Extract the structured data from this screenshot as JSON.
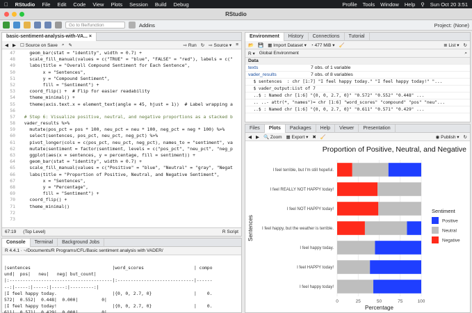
{
  "menubar": {
    "app": "RStudio",
    "items": [
      "File",
      "Edit",
      "Code",
      "View",
      "Plots",
      "Session",
      "Build",
      "Debug"
    ],
    "right_items": [
      "Profile",
      "Tools",
      "Window",
      "Help"
    ],
    "clock": "Sun Oct 20  3:51"
  },
  "window_title": "RStudio",
  "toolbar": {
    "goto_placeholder": "Go to file/function",
    "addins": "Addins",
    "project": "Project: (None)"
  },
  "editor": {
    "tab": "basic-sentiment-analysis-with-VA...",
    "source_on_save": "Source on Save",
    "run": "Run",
    "source": "Source",
    "lines": [
      {
        "n": "47",
        "t": "    geom_bar(stat = \"identity\", width = 0.7) +"
      },
      {
        "n": "48",
        "t": "    scale_fill_manual(values = c(\"TRUE\" = \"blue\", \"FALSE\" = \"red\"), labels = c(\""
      },
      {
        "n": "49",
        "t": "    labs(title = \"Overall Compound Sentiment for Each Sentence\","
      },
      {
        "n": "50",
        "t": "         x = \"Sentences\","
      },
      {
        "n": "51",
        "t": "         y = \"Compound Sentiment\","
      },
      {
        "n": "52",
        "t": "         fill = \"Sentiment\") +"
      },
      {
        "n": "53",
        "t": "    coord_flip() +  # Flip for easier readability"
      },
      {
        "n": "54",
        "t": "    theme_minimal() +"
      },
      {
        "n": "55",
        "t": "    theme(axis.text.x = element_text(angle = 45, hjust = 1))  # Label wrapping a"
      },
      {
        "n": "56",
        "t": ""
      },
      {
        "n": "57",
        "t": "  # Step 6: Visualize positive, neutral, and negative proportions as a stacked b"
      },
      {
        "n": "58",
        "t": "  vader_results %>%"
      },
      {
        "n": "59",
        "t": "    mutate(pos_pct = pos * 100, neu_pct = neu * 100, neg_pct = neg * 100) %>%"
      },
      {
        "n": "60",
        "t": "    select(sentences, pos_pct, neu_pct, neg_pct) %>%"
      },
      {
        "n": "61",
        "t": "    pivot_longer(cols = c(pos_pct, neu_pct, neg_pct), names_to = \"sentiment\", va"
      },
      {
        "n": "62",
        "t": "    mutate(sentiment = factor(sentiment, levels = c(\"pos_pct\", \"neu_pct\", \"neg_p"
      },
      {
        "n": "63",
        "t": "    ggplot(aes(x = sentences, y = percentage, fill = sentiment)) +"
      },
      {
        "n": "64",
        "t": "    geom_bar(stat = \"identity\", width = 0.7) +"
      },
      {
        "n": "65",
        "t": "    scale_fill_manual(values = c(\"Positive\" = \"blue\", \"Neutral\" = \"gray\", \"Negat"
      },
      {
        "n": "66",
        "t": "    labs(title = \"Proportion of Positive, Neutral, and Negative Sentiment\","
      },
      {
        "n": "67",
        "t": "         x = \"Sentences\","
      },
      {
        "n": "68",
        "t": "         y = \"Percentage\","
      },
      {
        "n": "69",
        "t": "         fill = \"Sentiment\") +"
      },
      {
        "n": "70",
        "t": "    coord_flip() +"
      },
      {
        "n": "71",
        "t": "    theme_minimal()"
      },
      {
        "n": "72",
        "t": ""
      },
      {
        "n": "73",
        "t": ""
      }
    ],
    "status_pos": "67:19",
    "status_scope": "(Top Level)",
    "status_type": "R Script"
  },
  "console": {
    "tabs": [
      "Console",
      "Terminal",
      "Background Jobs"
    ],
    "path": "R 4.4.1 · ~/Documents/R Programs/CFL/Basic sentiment analysis with VADER/",
    "lines": [
      "|sentences                               |word_scores                   | compo",
      "und|  pos|   neu|   neg| but_count|",
      "|:---------------------------------------|:-----------------------------|------",
      "--:|-----:|-----:|-----:|---------:|",
      "|I feel happy today.                     |{0, 0, 2.7, 0}                |    0.",
      "572|  0.552|  0.448|  0.000|         0|",
      "|I feel happy today!                     |{0, 0, 2.7, 0}                |    0.",
      "611|  0.571|  0.429|  0.000|         0|"
    ]
  },
  "environment": {
    "tabs": [
      "Environment",
      "History",
      "Connections",
      "Tutorial"
    ],
    "import": "Import Dataset",
    "memory": "477 MiB",
    "list": "List",
    "scope": "Global Environment",
    "section": "Data",
    "rows": [
      {
        "name": "texts",
        "value": "7 obs. of 1 variable"
      },
      {
        "name": "vader_results",
        "value": "7 obs. of 8 variables"
      }
    ],
    "details": [
      "  $ sentences  : chr [1:7] \"I feel happy today.\" \"I feel happy today!\" \"...",
      "  $ vader_output:List of 7",
      "  ..$ : Named chr [1:6] \"{0, 0, 2.7, 0}\" \"0.572\" \"0.552\" \"0.448\" ...",
      "  .. ..- attr(*, \"names\")= chr [1:6] \"word_scores\" \"compound\" \"pos\" \"neu\"...",
      "  ..$ : Named chr [1:6] \"{0, 0, 2.7, 0}\" \"0.611\" \"0.571\" \"0.429\" ..."
    ]
  },
  "plots_pane": {
    "tabs": [
      "Files",
      "Plots",
      "Packages",
      "Help",
      "Viewer",
      "Presentation"
    ],
    "zoom": "Zoom",
    "export": "Export",
    "publish": "Publish"
  },
  "chart_data": {
    "type": "bar",
    "orientation": "horizontal-stacked",
    "title": "Proportion of Positive, Neutral, and Negative",
    "xlabel": "Percentage",
    "ylabel": "Sentences",
    "xlim": [
      0,
      100
    ],
    "xticks": [
      "0",
      "25",
      "50",
      "75",
      "100"
    ],
    "legend_title": "Sentiment",
    "legend_position": "right",
    "categories": [
      "I feel terrible, but I'm still hopeful.",
      "I feel REALLY NOT HAPPY today!",
      "I feel NOT HAPPY today!",
      "I feel happy, but the weather is terrible.",
      "I feel happy today.",
      "I feel HAPPY today!",
      "I feel happy today!"
    ],
    "series": [
      {
        "name": "Negative",
        "color": "#ff2a1a",
        "values": [
          18,
          48,
          49,
          33,
          0,
          0,
          0
        ]
      },
      {
        "name": "Neutral",
        "color": "#bebebe",
        "values": [
          43,
          52,
          51,
          50,
          45,
          39,
          43
        ]
      },
      {
        "name": "Positive",
        "color": "#1f3fff",
        "values": [
          39,
          0,
          0,
          17,
          55,
          61,
          57
        ]
      }
    ],
    "legend_order": [
      "Positive",
      "Neutral",
      "Negative"
    ]
  }
}
